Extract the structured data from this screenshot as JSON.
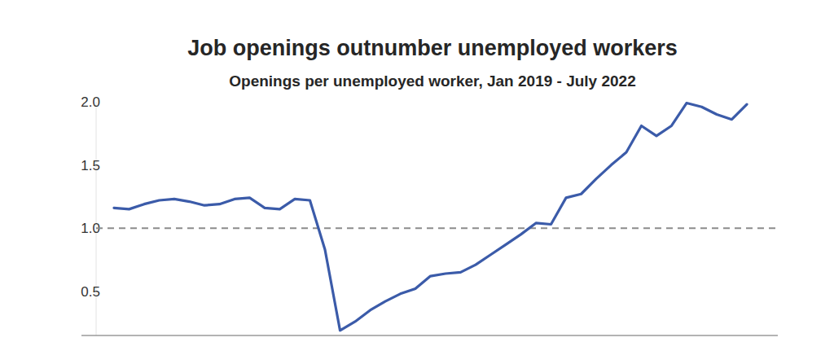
{
  "chart_data": {
    "type": "line",
    "title": "Job openings outnumber unemployed workers",
    "subtitle": "Openings per unemployed worker, Jan 2019 - July 2022",
    "categories": [
      null,
      null,
      null,
      null,
      null,
      null,
      null,
      null,
      null,
      null,
      null,
      null,
      null,
      null,
      null,
      null,
      null,
      null,
      null,
      null,
      null,
      null,
      null,
      null,
      null,
      null,
      null,
      null,
      null,
      null,
      null,
      null,
      null,
      null,
      null,
      null,
      null,
      null,
      null,
      null,
      null,
      null,
      null
    ],
    "values": [
      1.16,
      1.15,
      1.19,
      1.22,
      1.23,
      1.21,
      1.18,
      1.19,
      1.23,
      1.24,
      1.16,
      1.15,
      1.23,
      1.22,
      0.83,
      0.19,
      0.26,
      0.35,
      0.42,
      0.48,
      0.52,
      0.62,
      0.64,
      0.65,
      0.71,
      0.79,
      0.87,
      0.95,
      1.04,
      1.03,
      1.24,
      1.27,
      1.39,
      1.5,
      1.6,
      1.81,
      1.73,
      1.81,
      1.99,
      1.96,
      1.9,
      1.86,
      1.98
    ],
    "color": "#3b5ba9",
    "ylim": [
      0.15,
      2.0
    ],
    "yticks": [
      0.5,
      {
        "value": 1.0,
        "label": "1.0"
      },
      1.5,
      {
        "value": 2.0,
        "label": "2.0"
      }
    ],
    "reference_line": 1.0,
    "grid": false,
    "tick_labels": "y"
  }
}
